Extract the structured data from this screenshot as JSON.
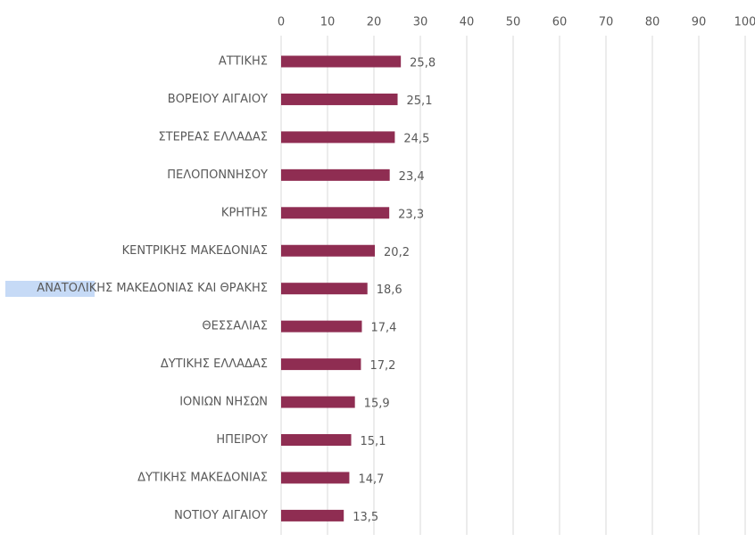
{
  "chart_data": {
    "type": "bar",
    "orientation": "horizontal",
    "categories": [
      "ΑΤΤΙΚΗΣ",
      "ΒΟΡΕΙΟΥ ΑΙΓΑΙΟΥ",
      "ΣΤΕΡΕΑΣ ΕΛΛΑΔΑΣ",
      "ΠΕΛΟΠΟΝΝΗΣΟΥ",
      "ΚΡΗΤΗΣ",
      "ΚΕΝΤΡΙΚΗΣ ΜΑΚΕΔΟΝΙΑΣ",
      "ΑΝΑΤΟΛΙΚΗΣ ΜΑΚΕΔΟΝΙΑΣ ΚΑΙ ΘΡΑΚΗΣ",
      "ΘΕΣΣΑΛΙΑΣ",
      "ΔΥΤΙΚΗΣ ΕΛΛΑΔΑΣ",
      "ΙΟΝΙΩΝ ΝΗΣΩΝ",
      "ΗΠΕΙΡΟΥ",
      "ΔΥΤΙΚΗΣ ΜΑΚΕΔΟΝΙΑΣ",
      "ΝΟΤΙΟΥ ΑΙΓΑΙΟΥ"
    ],
    "values": [
      25.8,
      25.1,
      24.5,
      23.4,
      23.3,
      20.2,
      18.6,
      17.4,
      17.2,
      15.9,
      15.1,
      14.7,
      13.5
    ],
    "value_labels": [
      "25,8",
      "25,1",
      "24,5",
      "23,4",
      "23,3",
      "20,2",
      "18,6",
      "17,4",
      "17,2",
      "15,9",
      "15,1",
      "14,7",
      "13,5"
    ],
    "color": "#8f2d52",
    "xlim": [
      0,
      100
    ],
    "xticks": [
      0,
      10,
      20,
      30,
      40,
      50,
      60,
      70,
      80,
      90,
      100
    ],
    "grid": true
  }
}
